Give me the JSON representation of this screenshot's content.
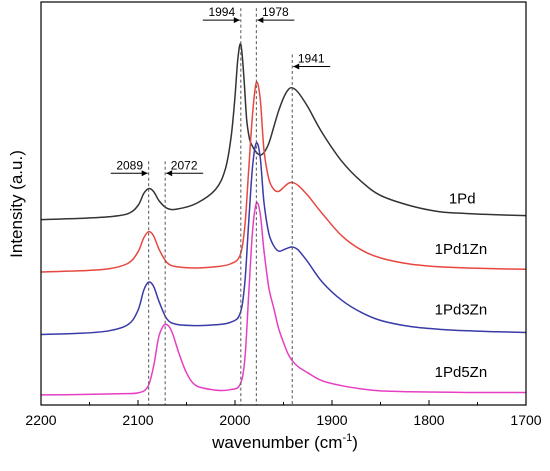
{
  "chart_data": {
    "type": "line",
    "xlabel": "wavenumber (cm",
    "xlabel_sup": "-1",
    "xlabel_end": ")",
    "ylabel": "Intensity (a.u.)",
    "xlim": [
      2200,
      1700
    ],
    "x_ticks": [
      2200,
      2100,
      2000,
      1900,
      1800,
      1700
    ],
    "x_tick_labels": [
      "2200",
      "2100",
      "2000",
      "1900",
      "1800",
      "1700"
    ],
    "ylim": [
      0,
      100
    ],
    "grid": false,
    "series": [
      {
        "name": "1Pd",
        "color": "#333333",
        "x": [
          2200,
          2160,
          2130,
          2110,
          2100,
          2094,
          2089,
          2084,
          2078,
          2070,
          2060,
          2040,
          2020,
          2010,
          2004,
          2000,
          1997,
          1994,
          1991,
          1988,
          1985,
          1982,
          1978,
          1974,
          1970,
          1965,
          1960,
          1955,
          1950,
          1945,
          1941,
          1935,
          1925,
          1910,
          1890,
          1870,
          1850,
          1820,
          1790,
          1760,
          1730,
          1700
        ],
        "values": [
          46.0,
          46.3,
          46.7,
          47.5,
          49.5,
          52.5,
          53.7,
          53.0,
          50.6,
          48.8,
          48.6,
          50.0,
          53.5,
          58.5,
          66.5,
          76.5,
          86.0,
          89.5,
          82.0,
          71.0,
          66.0,
          64.2,
          62.7,
          62.0,
          62.7,
          65.0,
          69.0,
          73.0,
          76.2,
          78.3,
          78.7,
          77.6,
          74.0,
          67.5,
          60.5,
          55.5,
          52.0,
          49.5,
          48.0,
          47.5,
          47.2,
          47.0
        ]
      },
      {
        "name": "1Pd1Zn",
        "color": "#e8473f",
        "x": [
          2200,
          2160,
          2130,
          2110,
          2100,
          2094,
          2089,
          2084,
          2078,
          2070,
          2060,
          2040,
          2020,
          2005,
          1995,
          1990,
          1986,
          1982,
          1978,
          1974,
          1970,
          1965,
          1960,
          1955,
          1950,
          1945,
          1941,
          1935,
          1925,
          1910,
          1890,
          1870,
          1850,
          1820,
          1790,
          1760,
          1730,
          1700
        ],
        "values": [
          33.0,
          33.3,
          33.8,
          35.2,
          38.0,
          41.5,
          43.0,
          42.0,
          38.5,
          35.3,
          34.3,
          34.0,
          34.3,
          35.0,
          37.0,
          44.0,
          58.0,
          72.0,
          80.0,
          76.0,
          63.0,
          56.0,
          53.5,
          53.0,
          54.0,
          55.0,
          55.2,
          54.5,
          52.0,
          47.5,
          42.0,
          38.5,
          36.5,
          35.0,
          34.3,
          34.0,
          33.8,
          33.7
        ]
      },
      {
        "name": "1Pd3Zn",
        "color": "#3a3aa8",
        "x": [
          2200,
          2160,
          2130,
          2110,
          2100,
          2094,
          2089,
          2084,
          2078,
          2070,
          2060,
          2040,
          2020,
          2005,
          1995,
          1990,
          1986,
          1982,
          1978,
          1974,
          1970,
          1965,
          1960,
          1955,
          1950,
          1945,
          1941,
          1935,
          1925,
          1910,
          1890,
          1870,
          1850,
          1820,
          1790,
          1760,
          1730,
          1700
        ],
        "values": [
          17.5,
          17.8,
          18.4,
          20.0,
          23.5,
          28.5,
          30.5,
          29.5,
          25.5,
          21.3,
          20.0,
          19.7,
          19.9,
          20.5,
          22.5,
          30.0,
          45.0,
          59.0,
          65.0,
          61.5,
          50.0,
          42.5,
          39.5,
          38.2,
          38.5,
          39.0,
          39.2,
          38.5,
          35.5,
          30.5,
          26.0,
          23.0,
          21.0,
          19.5,
          18.8,
          18.4,
          18.2,
          18.0
        ]
      },
      {
        "name": "1Pd5Zn",
        "color": "#e63fc4",
        "x": [
          2200,
          2160,
          2120,
          2100,
          2090,
          2084,
          2079,
          2075,
          2072,
          2068,
          2064,
          2058,
          2050,
          2040,
          2020,
          2005,
          1995,
          1990,
          1986,
          1982,
          1978,
          1974,
          1970,
          1965,
          1960,
          1955,
          1950,
          1945,
          1941,
          1935,
          1925,
          1910,
          1890,
          1870,
          1850,
          1820,
          1790,
          1760,
          1730,
          1700
        ],
        "values": [
          2.5,
          2.6,
          2.8,
          3.0,
          4.5,
          9.5,
          16.5,
          19.2,
          20.0,
          19.5,
          17.5,
          13.0,
          8.0,
          4.8,
          3.7,
          3.8,
          5.0,
          11.0,
          27.0,
          43.0,
          50.0,
          47.5,
          38.0,
          29.0,
          24.0,
          19.0,
          15.5,
          12.5,
          11.0,
          9.5,
          8.0,
          6.0,
          4.8,
          4.0,
          3.5,
          3.3,
          3.2,
          3.1,
          3.1,
          3.1
        ]
      }
    ],
    "series_labels": [
      {
        "text": "1Pd",
        "x": 1752,
        "y": 50.0
      },
      {
        "text": "1Pd1Zn",
        "x": 1740,
        "y": 37.5
      },
      {
        "text": "1Pd3Zn",
        "x": 1740,
        "y": 22.5
      },
      {
        "text": "1Pd5Zn",
        "x": 1740,
        "y": 7.0
      }
    ],
    "reference_lines": [
      {
        "x": 2089,
        "label": "2089",
        "y": 57.5,
        "arrow": "right"
      },
      {
        "x": 2072,
        "label": "2072",
        "y": 57.5,
        "arrow": "left"
      },
      {
        "x": 1994,
        "label": "1994",
        "y": 95.5,
        "arrow": "right"
      },
      {
        "x": 1978,
        "label": "1978",
        "y": 95.5,
        "arrow": "left"
      },
      {
        "x": 1941,
        "label": "1941",
        "y": 84.0,
        "arrow": "left"
      }
    ]
  }
}
